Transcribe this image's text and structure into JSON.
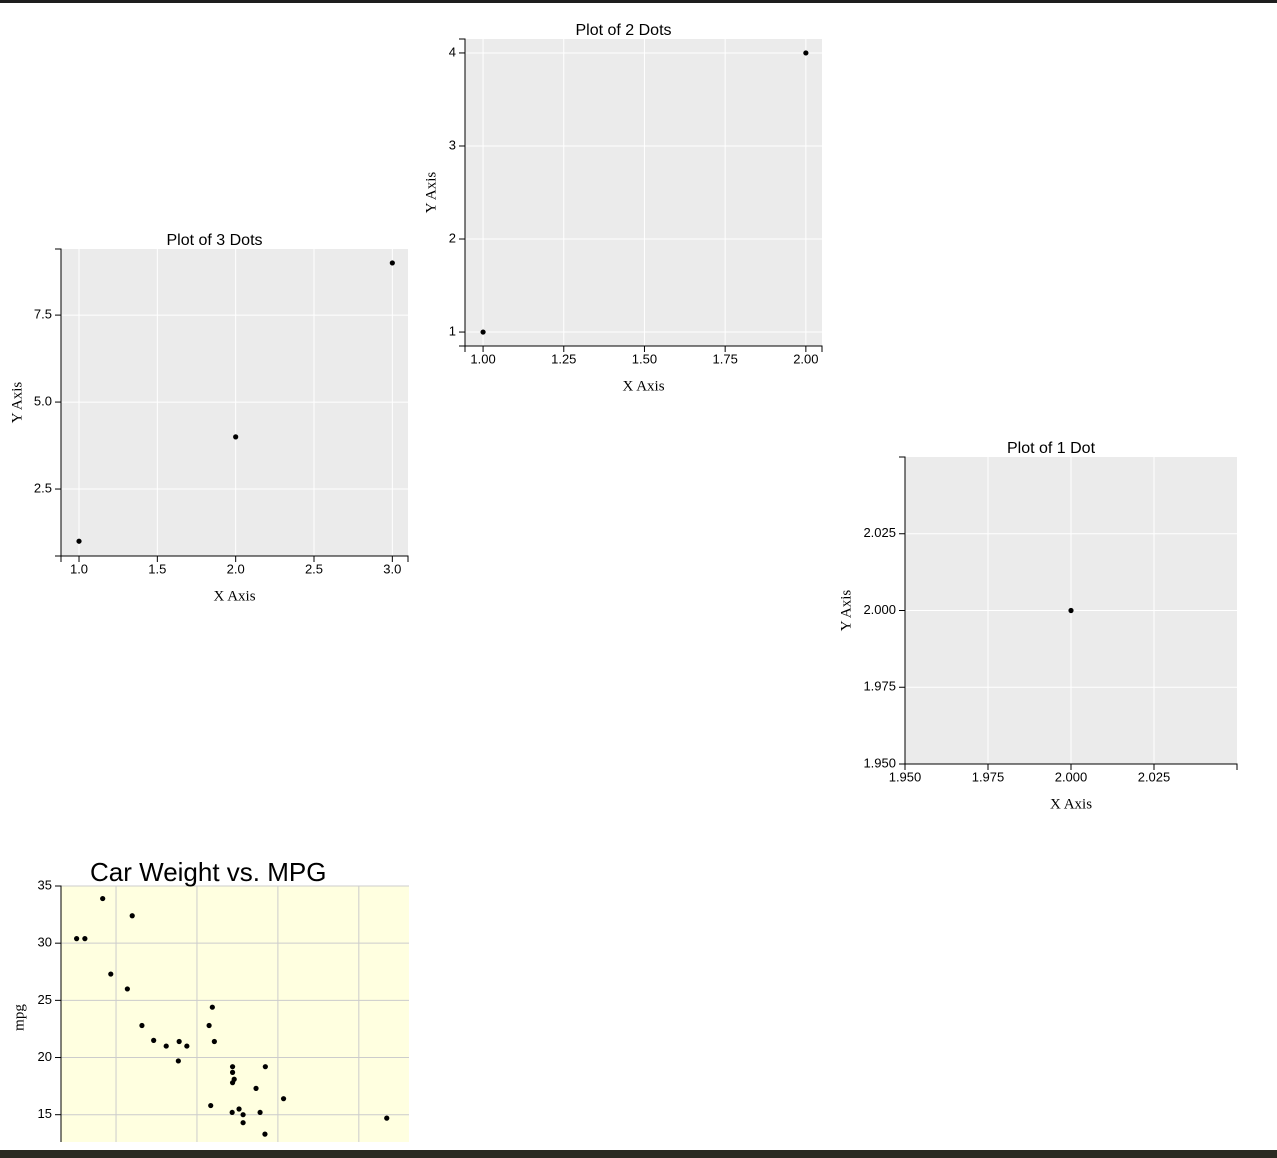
{
  "chart_data": [
    {
      "type": "scatter",
      "title": "Plot of 3 Dots",
      "x_label": "X Axis",
      "y_label": "Y Axis",
      "x": [
        1,
        2,
        3
      ],
      "values": [
        1,
        4,
        9
      ],
      "color": "#000000",
      "background": "#ebebeb",
      "grid_color": "#ffffff",
      "xlim": [
        0.885,
        3.1
      ],
      "xticks": [
        {
          "value": 1,
          "label": "1.0"
        },
        1.5,
        {
          "value": 2,
          "label": "2.0"
        },
        2.5,
        {
          "value": 3,
          "label": "3.0"
        }
      ],
      "ylim": [
        0.575,
        9.4
      ],
      "yticks": [
        2.5,
        {
          "value": 5,
          "label": "5.0"
        },
        7.5
      ],
      "grid": true
    },
    {
      "type": "scatter",
      "title": "Plot of 2 Dots",
      "x_label": "X Axis",
      "y_label": "Y Axis",
      "x": [
        1,
        2
      ],
      "values": [
        1,
        4
      ],
      "color": "#000000",
      "background": "#ebebeb",
      "grid_color": "#ffffff",
      "xlim": [
        0.944,
        2.05
      ],
      "xticks": [
        {
          "value": 1,
          "label": "1.00"
        },
        1.25,
        {
          "value": 1.5,
          "label": "1.50"
        },
        1.75,
        {
          "value": 2,
          "label": "2.00"
        }
      ],
      "ylim": [
        0.85,
        4.15
      ],
      "yticks": [
        1,
        2,
        3,
        4
      ],
      "grid": true
    },
    {
      "type": "scatter",
      "title": "Plot of 1 Dot",
      "x_label": "X Axis",
      "y_label": "Y Axis",
      "x": [
        2
      ],
      "values": [
        2
      ],
      "color": "#000000",
      "background": "#ebebeb",
      "grid_color": "#ffffff",
      "xlim": [
        1.95,
        2.05
      ],
      "xticks": [
        {
          "value": 1.95,
          "label": "1.950"
        },
        {
          "value": 1.975,
          "label": "1.975"
        },
        {
          "value": 2,
          "label": "2.000"
        },
        {
          "value": 2.025,
          "label": "2.025"
        }
      ],
      "ylim": [
        1.95,
        2.05
      ],
      "yticks": [
        {
          "value": 1.95,
          "label": "1.950"
        },
        {
          "value": 1.975,
          "label": "1.975"
        },
        {
          "value": 2,
          "label": "2.000"
        },
        {
          "value": 2.025,
          "label": "2.025"
        }
      ],
      "grid": true
    },
    {
      "type": "scatter",
      "title": "Car Weight vs. MPG",
      "y_label": "mpg",
      "x": [
        2.62,
        2.875,
        2.32,
        3.215,
        3.44,
        3.46,
        3.57,
        3.19,
        3.15,
        3.44,
        3.44,
        4.07,
        3.73,
        3.78,
        5.345,
        2.2,
        1.615,
        1.835,
        2.465,
        3.52,
        3.435,
        3.84,
        3.845,
        1.935,
        2.14,
        1.513,
        3.17,
        2.77,
        3.57,
        2.78
      ],
      "values": [
        21,
        21,
        22.8,
        21.4,
        18.7,
        18.1,
        14.3,
        24.4,
        22.8,
        19.2,
        17.8,
        16.4,
        17.3,
        15.2,
        14.7,
        32.4,
        30.4,
        33.9,
        21.5,
        15.5,
        15.2,
        13.3,
        19.2,
        27.3,
        26,
        30.4,
        15.8,
        19.7,
        15,
        21.4
      ],
      "color": "#000000",
      "background": "#ffffe0",
      "grid_color": "#cccccc",
      "xlim": [
        1.32,
        5.62
      ],
      "xticks": [
        2,
        3,
        4,
        5
      ],
      "ylim": [
        12,
        35
      ],
      "yticks": [
        15,
        20,
        25,
        30,
        35
      ],
      "grid": true
    }
  ]
}
